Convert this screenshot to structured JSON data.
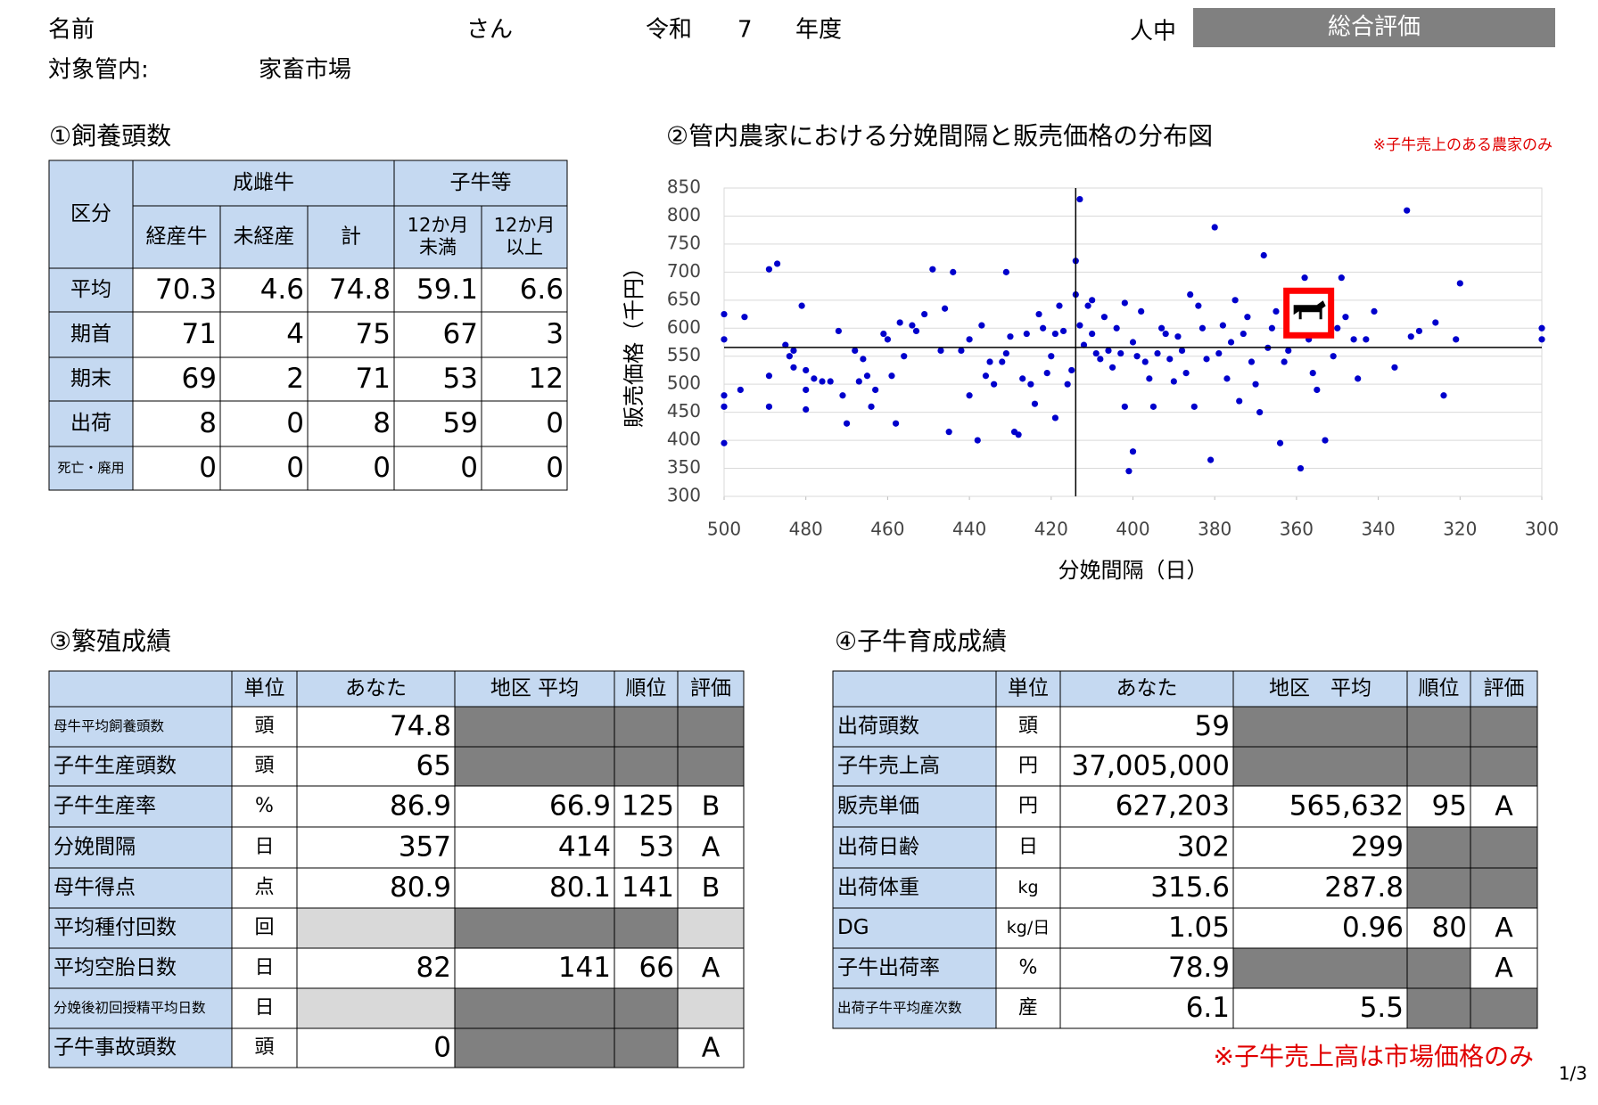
{
  "header": {
    "name_label": "名前",
    "san": "さん",
    "era": "令和",
    "year": "7",
    "nendo": "年度",
    "jinchu": "人中",
    "overall": "総合評価",
    "area_label": "対象管内:",
    "market": "家畜市場"
  },
  "feeding": {
    "title": "①飼養頭数",
    "corner": "区分",
    "groups": [
      "成雌牛",
      "子牛等"
    ],
    "columns": [
      [
        "経産牛"
      ],
      [
        "未経産"
      ],
      [
        "計"
      ],
      [
        "12か月",
        "未満"
      ],
      [
        "12か月",
        "以上"
      ]
    ],
    "rows": [
      {
        "label": "平均",
        "values": [
          70.3,
          4.6,
          74.8,
          59.1,
          6.6
        ]
      },
      {
        "label": "期首",
        "values": [
          71,
          4,
          75,
          67,
          3
        ]
      },
      {
        "label": "期末",
        "values": [
          69,
          2,
          71,
          53,
          12
        ]
      },
      {
        "label": "出荷",
        "values": [
          8,
          0,
          8,
          59,
          0
        ]
      },
      {
        "label": "死亡・廃用",
        "values": [
          0,
          0,
          0,
          0,
          0
        ]
      }
    ]
  },
  "chart_data": {
    "type": "scatter",
    "title": "②管内農家における分娩間隔と販売価格の分布図",
    "note": "※子牛売上のある農家のみ",
    "x_label": "分娩間隔（日）",
    "y_label": "販売価格（千円）",
    "xlim": [
      500,
      300
    ],
    "ylim": [
      300,
      850
    ],
    "xticks": [
      500,
      480,
      460,
      440,
      420,
      400,
      380,
      360,
      340,
      320,
      300
    ],
    "yticks": [
      300,
      350,
      400,
      450,
      500,
      550,
      600,
      650,
      700,
      750,
      800,
      850
    ],
    "grid": true,
    "color": "#0000cc",
    "ref_x": 414,
    "ref_y": 565.6,
    "highlight": {
      "x": 357,
      "y": 627,
      "color": "#ff0000"
    },
    "x": [
      500,
      500,
      500,
      500,
      500,
      496,
      495,
      489,
      489,
      489,
      487,
      485,
      484,
      483,
      483,
      481,
      480,
      480,
      480,
      478,
      476,
      474,
      472,
      471,
      470,
      468,
      467,
      466,
      465,
      464,
      463,
      461,
      460,
      459,
      458,
      457,
      456,
      454,
      453,
      451,
      449,
      447,
      446,
      445,
      444,
      442,
      440,
      440,
      438,
      437,
      436,
      435,
      434,
      432,
      431,
      431,
      430,
      429,
      428,
      427,
      426,
      425,
      424,
      423,
      422,
      421,
      420,
      419,
      419,
      418,
      417,
      416,
      415,
      414,
      414,
      413,
      413,
      412,
      411,
      410,
      410,
      409,
      408,
      407,
      406,
      405,
      404,
      403,
      402,
      402,
      401,
      400,
      400,
      399,
      398,
      397,
      396,
      395,
      394,
      393,
      392,
      391,
      390,
      389,
      388,
      387,
      386,
      385,
      384,
      383,
      382,
      381,
      380,
      379,
      378,
      377,
      376,
      375,
      374,
      373,
      372,
      371,
      370,
      369,
      368,
      367,
      366,
      365,
      364,
      363,
      362,
      361,
      360,
      359,
      358,
      357,
      356,
      355,
      354,
      353,
      351,
      350,
      349,
      348,
      346,
      345,
      343,
      341,
      336,
      333,
      332,
      330,
      326,
      324,
      321,
      320,
      300,
      300
    ],
    "y": [
      625,
      580,
      480,
      460,
      395,
      490,
      620,
      460,
      515,
      705,
      715,
      570,
      550,
      560,
      530,
      640,
      490,
      455,
      525,
      510,
      505,
      505,
      595,
      480,
      430,
      560,
      505,
      545,
      515,
      460,
      490,
      590,
      580,
      515,
      430,
      610,
      550,
      605,
      595,
      625,
      705,
      560,
      635,
      415,
      700,
      560,
      580,
      480,
      400,
      605,
      515,
      540,
      500,
      540,
      555,
      700,
      585,
      415,
      410,
      510,
      590,
      500,
      465,
      625,
      600,
      520,
      550,
      440,
      590,
      640,
      595,
      500,
      525,
      660,
      720,
      830,
      605,
      570,
      640,
      590,
      650,
      555,
      545,
      620,
      560,
      530,
      600,
      555,
      645,
      460,
      345,
      380,
      575,
      550,
      630,
      540,
      510,
      460,
      555,
      600,
      590,
      545,
      505,
      585,
      560,
      520,
      660,
      460,
      640,
      600,
      545,
      365,
      780,
      555,
      605,
      510,
      575,
      650,
      470,
      590,
      620,
      540,
      500,
      450,
      730,
      565,
      600,
      630,
      395,
      540,
      560,
      600,
      640,
      350,
      690,
      580,
      520,
      490,
      665,
      400,
      550,
      600,
      690,
      620,
      580,
      510,
      580,
      630,
      530,
      810,
      585,
      595,
      610,
      480,
      580,
      680,
      600,
      580
    ]
  },
  "breeding": {
    "title": "③繁殖成績",
    "columns": [
      "単位",
      "あなた",
      "地区 平均",
      "順位",
      "評価"
    ],
    "rows": [
      {
        "label": "母牛平均飼養頭数",
        "cells": [
          "頭",
          74.8,
          null,
          null,
          null
        ]
      },
      {
        "label": "子牛生産頭数",
        "cells": [
          "頭",
          65,
          null,
          null,
          null
        ]
      },
      {
        "label": "子牛生産率",
        "cells": [
          "%",
          86.9,
          66.9,
          125,
          "B"
        ]
      },
      {
        "label": "分娩間隔",
        "cells": [
          "日",
          357,
          414,
          53,
          "A"
        ]
      },
      {
        "label": "母牛得点",
        "cells": [
          "点",
          80.9,
          80.1,
          141,
          "B"
        ]
      },
      {
        "label": "平均種付回数",
        "cells": [
          "回",
          null,
          null,
          null,
          null
        ]
      },
      {
        "label": "平均空胎日数",
        "cells": [
          "日",
          82,
          141,
          66,
          "A"
        ]
      },
      {
        "label": "分娩後初回授精平均日数",
        "cells": [
          "日",
          null,
          null,
          null,
          null
        ]
      },
      {
        "label": "子牛事故頭数",
        "cells": [
          "頭",
          0,
          null,
          null,
          "A"
        ]
      }
    ]
  },
  "rearing": {
    "title": "④子牛育成成績",
    "columns": [
      "単位",
      "あなた",
      "地区　平均",
      "順位",
      "評価"
    ],
    "rows": [
      {
        "label": "出荷頭数",
        "cells": [
          "頭",
          59,
          null,
          null,
          null
        ]
      },
      {
        "label": "子牛売上高",
        "cells": [
          "円",
          "37,005,000",
          null,
          null,
          null
        ]
      },
      {
        "label": "販売単価",
        "cells": [
          "円",
          "627,203",
          "565,632",
          95,
          "A"
        ]
      },
      {
        "label": "出荷日齢",
        "cells": [
          "日",
          302,
          299,
          null,
          null
        ]
      },
      {
        "label": "出荷体重",
        "cells": [
          "kg",
          315.6,
          287.8,
          null,
          null
        ]
      },
      {
        "label": "DG",
        "cells": [
          "kg/日",
          1.05,
          0.96,
          80,
          "A"
        ]
      },
      {
        "label": "子牛出荷率",
        "cells": [
          "%",
          78.9,
          null,
          null,
          "A"
        ]
      },
      {
        "label": "出荷子牛平均産次数",
        "cells": [
          "産",
          6.1,
          5.5,
          null,
          null
        ]
      }
    ]
  },
  "footnote": "※子牛売上高は市場価格のみ",
  "page": "1/3"
}
